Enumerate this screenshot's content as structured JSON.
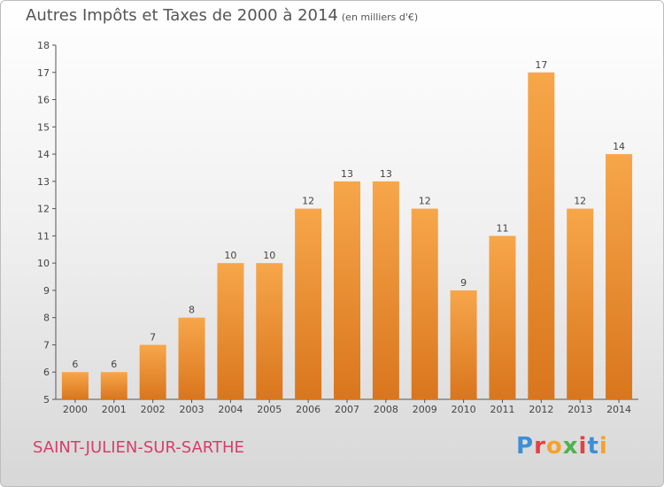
{
  "header": {
    "title": "Autres Impôts et Taxes de 2000 à 2014",
    "unit": "(en milliers d'€)"
  },
  "footer": {
    "place": "SAINT-JULIEN-SUR-SARTHE",
    "brand_letters": [
      "P",
      "r",
      "o",
      "x",
      "i",
      "t",
      "i"
    ]
  },
  "colors": {
    "bar_light": "#f7a64a",
    "bar_dark": "#d9761d",
    "place": "#d43f6b",
    "brand": [
      "#3d8fd6",
      "#e6403f",
      "#f4a32a",
      "#4fb24e",
      "#e6403f",
      "#3d8fd6",
      "#f4a32a"
    ]
  },
  "chart_data": {
    "type": "bar",
    "title": "Autres Impôts et Taxes de 2000 à 2014",
    "subtitle": "(en milliers d'€)",
    "xlabel": "",
    "ylabel": "",
    "categories": [
      "2000",
      "2001",
      "2002",
      "2003",
      "2004",
      "2005",
      "2006",
      "2007",
      "2008",
      "2009",
      "2010",
      "2011",
      "2012",
      "2013",
      "2014"
    ],
    "values": [
      6,
      6,
      7,
      8,
      10,
      10,
      12,
      13,
      13,
      12,
      9,
      11,
      17,
      12,
      14
    ],
    "ylim": [
      5,
      18
    ],
    "yticks": [
      5,
      6,
      7,
      8,
      9,
      10,
      11,
      12,
      13,
      14,
      15,
      16,
      17,
      18
    ],
    "grid": false,
    "legend": "none"
  }
}
